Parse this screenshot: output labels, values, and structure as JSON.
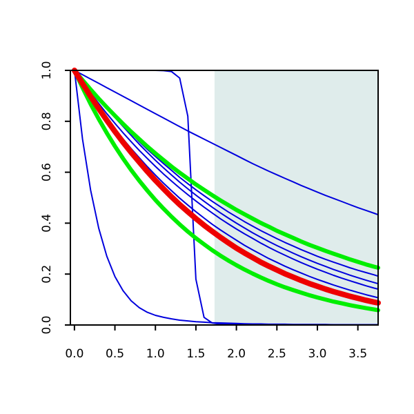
{
  "chart_data": {
    "type": "line",
    "title": "",
    "xlabel": "",
    "ylabel": "",
    "xlim": [
      -0.05,
      3.75
    ],
    "ylim": [
      0.0,
      1.0
    ],
    "grid": false,
    "x_ticks": [
      "0.0",
      "0.5",
      "1.0",
      "1.5",
      "2.0",
      "2.5",
      "3.0",
      "3.5"
    ],
    "y_ticks": [
      "0.0",
      "0.2",
      "0.4",
      "0.6",
      "0.8",
      "1.0"
    ],
    "shaded_region": {
      "x_from": 1.73,
      "x_to": 3.75,
      "color": "#dfeceb"
    },
    "x": [
      0,
      0.1,
      0.2,
      0.3,
      0.4,
      0.5,
      0.6,
      0.7,
      0.8,
      0.9,
      1.0,
      1.1,
      1.2,
      1.3,
      1.4,
      1.5,
      1.6,
      1.7,
      1.8,
      1.9,
      2.0,
      2.1,
      2.2,
      2.3,
      2.4,
      2.5,
      2.6,
      2.7,
      2.8,
      2.9,
      3.0,
      3.1,
      3.2,
      3.3,
      3.4,
      3.5,
      3.6,
      3.7,
      3.75
    ],
    "series": [
      {
        "color": "#0000dd",
        "width": 2,
        "values": [
          1.0,
          0.983,
          0.966,
          0.949,
          0.932,
          0.915,
          0.898,
          0.881,
          0.864,
          0.847,
          0.83,
          0.813,
          0.796,
          0.779,
          0.762,
          0.746,
          0.73,
          0.714,
          0.698,
          0.682,
          0.666,
          0.65,
          0.634,
          0.619,
          0.604,
          0.59,
          0.576,
          0.562,
          0.548,
          0.535,
          0.522,
          0.509,
          0.497,
          0.485,
          0.473,
          0.461,
          0.45,
          0.439,
          0.433
        ]
      },
      {
        "color": "#0000dd",
        "width": 2,
        "values": [
          1.0,
          0.73,
          0.53,
          0.38,
          0.27,
          0.19,
          0.135,
          0.095,
          0.068,
          0.05,
          0.038,
          0.03,
          0.024,
          0.019,
          0.016,
          0.013,
          0.011,
          0.009,
          0.008,
          0.007,
          0.006,
          0.005,
          0.004,
          0.004,
          0.003,
          0.003,
          0.003,
          0.002,
          0.002,
          0.002,
          0.002,
          0.002,
          0.001,
          0.001,
          0.001,
          0.001,
          0.001,
          0.001,
          0.001
        ]
      },
      {
        "color": "#0000dd",
        "width": 2,
        "values": [
          1.0,
          1.0,
          1.0,
          1.0,
          1.0,
          1.0,
          1.0,
          1.0,
          1.0,
          1.0,
          1.0,
          0.999,
          0.995,
          0.97,
          0.82,
          0.18,
          0.03,
          0.008,
          0.004,
          0.003,
          0.002,
          0.002,
          0.002,
          0.001,
          0.001,
          0.001,
          0.001,
          0.001,
          0.001,
          0.001,
          0.001,
          0.001,
          0.001,
          0.001,
          0.001,
          0.001,
          0.001,
          0.001,
          0.001
        ]
      },
      {
        "color": "#0000dd",
        "width": 2,
        "values": [
          1.0,
          0.965,
          0.93,
          0.895,
          0.86,
          0.825,
          0.79,
          0.755,
          0.72,
          0.69,
          0.662,
          0.634,
          0.607,
          0.58,
          0.555,
          0.531,
          0.508,
          0.486,
          0.465,
          0.444,
          0.425,
          0.406,
          0.388,
          0.371,
          0.355,
          0.339,
          0.324,
          0.31,
          0.296,
          0.283,
          0.27,
          0.258,
          0.247,
          0.236,
          0.225,
          0.215,
          0.206,
          0.197,
          0.192
        ]
      },
      {
        "color": "#0000dd",
        "width": 2,
        "values": [
          1.0,
          0.962,
          0.925,
          0.888,
          0.852,
          0.815,
          0.78,
          0.745,
          0.71,
          0.678,
          0.647,
          0.617,
          0.589,
          0.561,
          0.535,
          0.51,
          0.486,
          0.463,
          0.441,
          0.42,
          0.4,
          0.381,
          0.362,
          0.345,
          0.328,
          0.312,
          0.297,
          0.282,
          0.268,
          0.255,
          0.242,
          0.23,
          0.218,
          0.207,
          0.196,
          0.186,
          0.176,
          0.167,
          0.162
        ]
      },
      {
        "color": "#0000dd",
        "width": 2,
        "values": [
          1.0,
          0.955,
          0.912,
          0.87,
          0.83,
          0.792,
          0.755,
          0.72,
          0.686,
          0.654,
          0.623,
          0.593,
          0.565,
          0.538,
          0.512,
          0.487,
          0.463,
          0.44,
          0.418,
          0.397,
          0.377,
          0.358,
          0.34,
          0.322,
          0.305,
          0.289,
          0.274,
          0.259,
          0.245,
          0.232,
          0.219,
          0.207,
          0.195,
          0.184,
          0.174,
          0.164,
          0.154,
          0.145,
          0.141
        ]
      },
      {
        "color": "#0000dd",
        "width": 2,
        "values": [
          1.0,
          0.95,
          0.902,
          0.857,
          0.813,
          0.771,
          0.731,
          0.693,
          0.657,
          0.622,
          0.589,
          0.557,
          0.527,
          0.498,
          0.471,
          0.445,
          0.42,
          0.396,
          0.374,
          0.353,
          0.333,
          0.313,
          0.295,
          0.278,
          0.261,
          0.246,
          0.231,
          0.217,
          0.204,
          0.191,
          0.179,
          0.168,
          0.157,
          0.147,
          0.137,
          0.128,
          0.119,
          0.111,
          0.107
        ]
      },
      {
        "color": "#0000dd",
        "width": 2,
        "values": [
          1.0,
          0.948,
          0.898,
          0.85,
          0.805,
          0.761,
          0.719,
          0.679,
          0.641,
          0.605,
          0.57,
          0.537,
          0.506,
          0.476,
          0.448,
          0.421,
          0.396,
          0.372,
          0.349,
          0.327,
          0.306,
          0.287,
          0.268,
          0.251,
          0.234,
          0.219,
          0.204,
          0.19,
          0.177,
          0.165,
          0.153,
          0.142,
          0.132,
          0.122,
          0.113,
          0.105,
          0.097,
          0.089,
          0.086
        ]
      },
      {
        "color": "#00ee00",
        "width": 6,
        "values": [
          1.0,
          0.962,
          0.925,
          0.889,
          0.855,
          0.822,
          0.79,
          0.759,
          0.73,
          0.701,
          0.674,
          0.648,
          0.622,
          0.598,
          0.575,
          0.552,
          0.531,
          0.51,
          0.49,
          0.471,
          0.452,
          0.435,
          0.418,
          0.401,
          0.386,
          0.37,
          0.356,
          0.342,
          0.328,
          0.315,
          0.303,
          0.291,
          0.28,
          0.269,
          0.258,
          0.248,
          0.238,
          0.229,
          0.225
        ]
      },
      {
        "color": "#00ee00",
        "width": 6,
        "values": [
          1.0,
          0.932,
          0.868,
          0.809,
          0.754,
          0.702,
          0.654,
          0.609,
          0.567,
          0.528,
          0.491,
          0.457,
          0.425,
          0.395,
          0.367,
          0.341,
          0.317,
          0.294,
          0.273,
          0.253,
          0.235,
          0.218,
          0.202,
          0.187,
          0.173,
          0.16,
          0.148,
          0.137,
          0.127,
          0.117,
          0.108,
          0.1,
          0.092,
          0.085,
          0.078,
          0.072,
          0.066,
          0.061,
          0.058
        ]
      },
      {
        "color": "#ee0000",
        "width": 8,
        "values": [
          1.0,
          0.948,
          0.898,
          0.85,
          0.804,
          0.76,
          0.718,
          0.678,
          0.64,
          0.603,
          0.568,
          0.535,
          0.503,
          0.473,
          0.445,
          0.418,
          0.392,
          0.368,
          0.345,
          0.323,
          0.302,
          0.283,
          0.265,
          0.247,
          0.231,
          0.216,
          0.201,
          0.188,
          0.175,
          0.163,
          0.152,
          0.141,
          0.131,
          0.122,
          0.113,
          0.105,
          0.097,
          0.09,
          0.087
        ]
      }
    ]
  }
}
